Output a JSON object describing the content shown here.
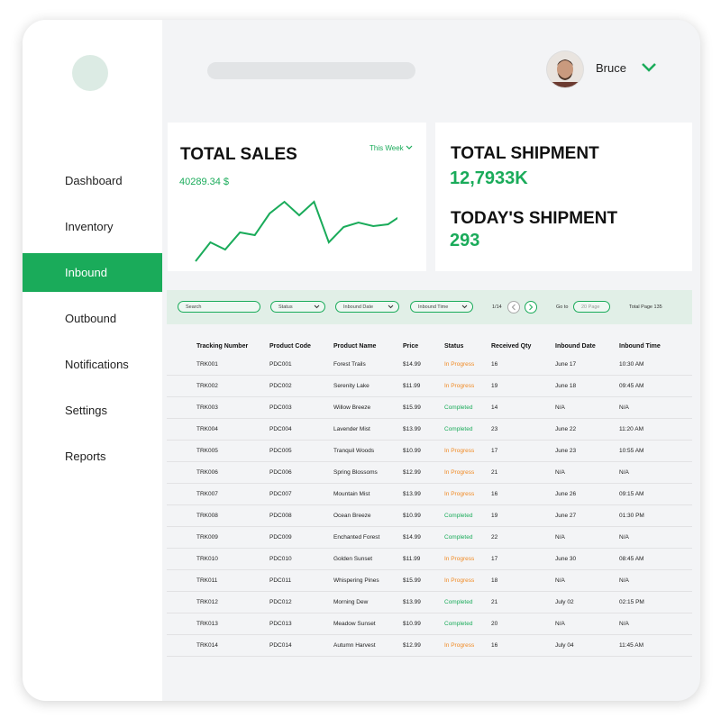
{
  "sidebar": {
    "items": [
      "Dashboard",
      "Inventory",
      "Inbound",
      "Outbound",
      "Notifications",
      "Settings",
      "Reports"
    ],
    "active": 2
  },
  "header": {
    "user": "Bruce"
  },
  "sales": {
    "title": "TOTAL SALES",
    "period": "This Week",
    "amount": "40289.34 $",
    "trend": [
      12,
      33,
      25,
      44,
      41,
      65,
      78,
      63,
      78,
      33,
      50,
      55,
      51,
      53,
      64
    ],
    "color": "#1aab5a"
  },
  "shipment": {
    "total_title": "TOTAL SHIPMENT",
    "total_value": "12,7933K",
    "today_title": "TODAY'S SHIPMENT",
    "today_value": "293"
  },
  "filters": {
    "search": "Search",
    "status": "Status",
    "inbound_date": "Inbound Date",
    "inbound_time": "Inbound Time",
    "page": "1/14",
    "goto": "Go to",
    "goto_placeholder": "20 Page",
    "total_pages": "Total Page 135"
  },
  "table": {
    "columns": [
      "Tracking Number",
      "Product Code",
      "Product Name",
      "Price",
      "Status",
      "Received Qty",
      "Inbound Date",
      "Inbound Time"
    ],
    "status_colors": {
      "In Progress": "#f08a24",
      "Completed": "#1aab5a"
    },
    "rows": [
      [
        "TRK001",
        "PDC001",
        "Forest Trails",
        "$14.99",
        "In Progress",
        "16",
        "June 17",
        "10:30 AM"
      ],
      [
        "TRK002",
        "PDC002",
        "Serenity Lake",
        "$11.99",
        "In Progress",
        "19",
        "June 18",
        "09:45 AM"
      ],
      [
        "TRK003",
        "PDC003",
        "Willow Breeze",
        "$15.99",
        "Completed",
        "14",
        "N/A",
        "N/A"
      ],
      [
        "TRK004",
        "PDC004",
        "Lavender Mist",
        "$13.99",
        "Completed",
        "23",
        "June 22",
        "11:20 AM"
      ],
      [
        "TRK005",
        "PDC005",
        "Tranquil Woods",
        "$10.99",
        "In Progress",
        "17",
        "June 23",
        "10:55 AM"
      ],
      [
        "TRK006",
        "PDC006",
        "Spring Blossoms",
        "$12.99",
        "In Progress",
        "21",
        "N/A",
        "N/A"
      ],
      [
        "TRK007",
        "PDC007",
        "Mountain Mist",
        "$13.99",
        "In Progress",
        "16",
        "June 26",
        "09:15 AM"
      ],
      [
        "TRK008",
        "PDC008",
        "Ocean Breeze",
        "$10.99",
        "Completed",
        "19",
        "June 27",
        "01:30 PM"
      ],
      [
        "TRK009",
        "PDC009",
        "Enchanted Forest",
        "$14.99",
        "Completed",
        "22",
        "N/A",
        "N/A"
      ],
      [
        "TRK010",
        "PDC010",
        "Golden Sunset",
        "$11.99",
        "In Progress",
        "17",
        "June 30",
        "08:45 AM"
      ],
      [
        "TRK011",
        "PDC011",
        "Whispering Pines",
        "$15.99",
        "In Progress",
        "18",
        "N/A",
        "N/A"
      ],
      [
        "TRK012",
        "PDC012",
        "Morning Dew",
        "$13.99",
        "Completed",
        "21",
        "July 02",
        "02:15 PM"
      ],
      [
        "TRK013",
        "PDC013",
        "Meadow Sunset",
        "$10.99",
        "Completed",
        "20",
        "N/A",
        "N/A"
      ],
      [
        "TRK014",
        "PDC014",
        "Autumn Harvest",
        "$12.99",
        "In Progress",
        "16",
        "July 04",
        "11:45 AM"
      ]
    ]
  }
}
